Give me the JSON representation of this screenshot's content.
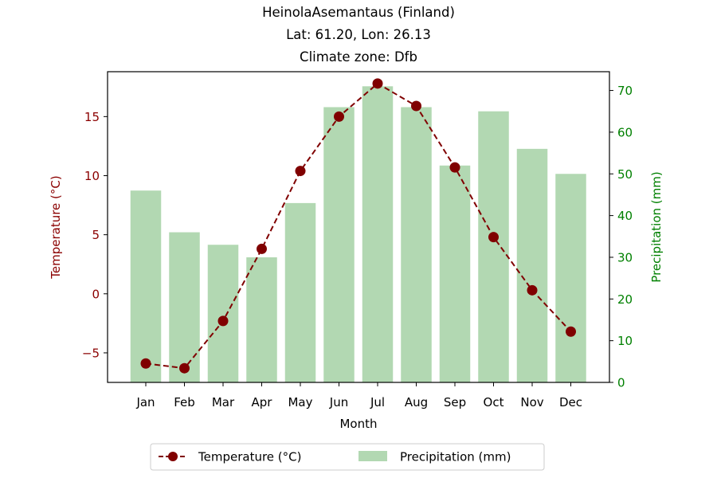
{
  "chart_data": {
    "type": "bar+line",
    "title_lines": [
      "HeinolaAsemantaus (Finland)",
      "Lat: 61.20, Lon: 26.13",
      "Climate zone: Dfb"
    ],
    "categories": [
      "Jan",
      "Feb",
      "Mar",
      "Apr",
      "May",
      "Jun",
      "Jul",
      "Aug",
      "Sep",
      "Oct",
      "Nov",
      "Dec"
    ],
    "xlabel": "Month",
    "y_left": {
      "label": "Temperature (°C)",
      "lim": [
        -7.5,
        18.8
      ],
      "ticks": [
        -5,
        0,
        5,
        10,
        15
      ],
      "tick_labels": [
        "−5",
        "0",
        "5",
        "10",
        "15"
      ],
      "color": "#8b0000"
    },
    "y_right": {
      "label": "Precipitation (mm)",
      "lim": [
        0,
        74.5
      ],
      "ticks": [
        0,
        10,
        20,
        30,
        40,
        50,
        60,
        70
      ],
      "tick_labels": [
        "0",
        "10",
        "20",
        "30",
        "40",
        "50",
        "60",
        "70"
      ],
      "color": "#008000"
    },
    "series": [
      {
        "name": "Precipitation (mm)",
        "kind": "bar",
        "axis": "right",
        "color": "#b2d8b2",
        "values": [
          46,
          36,
          33,
          30,
          43,
          66,
          71,
          66,
          52,
          65,
          56,
          50
        ]
      },
      {
        "name": "Temperature (°C)",
        "kind": "line",
        "axis": "left",
        "color": "#800000",
        "values": [
          -5.9,
          -6.3,
          -2.3,
          3.8,
          10.4,
          15.0,
          17.8,
          15.9,
          10.7,
          4.8,
          0.3,
          -3.2
        ]
      }
    ],
    "legend": {
      "placement": "bottom-center",
      "entries": [
        "Temperature (°C)",
        "Precipitation (mm)"
      ]
    },
    "grid": false
  }
}
